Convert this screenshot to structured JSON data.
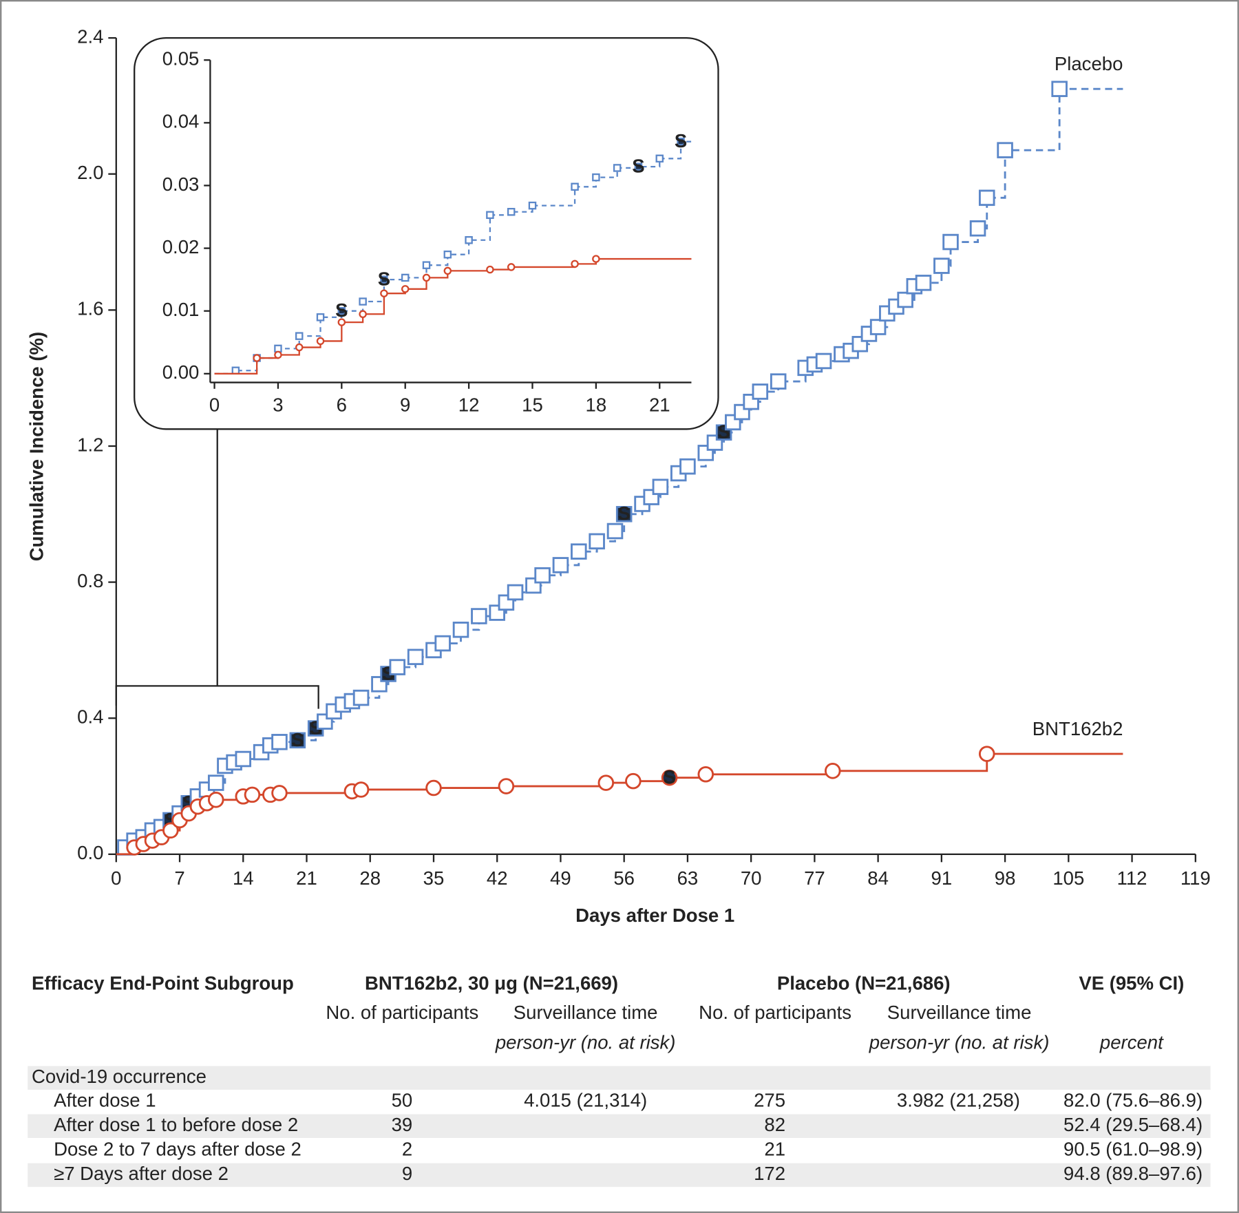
{
  "chart_data": [
    {
      "type": "step",
      "xlabel": "Days after Dose 1",
      "ylabel": "Cumulative Incidence (%)",
      "xlim": [
        0,
        119
      ],
      "ylim": [
        0,
        2.4
      ],
      "xticks": [
        0,
        7,
        14,
        21,
        28,
        35,
        42,
        49,
        56,
        63,
        70,
        77,
        84,
        91,
        98,
        105,
        112,
        119
      ],
      "yticks": [
        {
          "value": 0,
          "label": "0.0"
        },
        0.4,
        0.8,
        1.2,
        1.6,
        {
          "value": 2,
          "label": "2.0"
        },
        2.4
      ],
      "line_end_x": 111,
      "series": [
        {
          "name": "Placebo",
          "color": "#5b87c9",
          "marker": "square",
          "dashed": true,
          "x": [
            0,
            1,
            2,
            3,
            4,
            5,
            6,
            7,
            8,
            9,
            10,
            11,
            12,
            13,
            14,
            16,
            17,
            18,
            20,
            22,
            23,
            24,
            25,
            26,
            27,
            29,
            30,
            31,
            33,
            35,
            36,
            38,
            40,
            42,
            43,
            44,
            46,
            47,
            49,
            51,
            53,
            55,
            56,
            58,
            59,
            60,
            62,
            63,
            65,
            66,
            67,
            68,
            69,
            70,
            71,
            73,
            76,
            77,
            78,
            80,
            81,
            82,
            83,
            84,
            85,
            86,
            87,
            88,
            89,
            91,
            92,
            95,
            96,
            98,
            104
          ],
          "values": [
            0,
            0.02,
            0.04,
            0.05,
            0.07,
            0.08,
            0.1,
            0.12,
            0.15,
            0.17,
            0.19,
            0.21,
            0.26,
            0.27,
            0.28,
            0.3,
            0.32,
            0.33,
            0.335,
            0.37,
            0.39,
            0.42,
            0.44,
            0.45,
            0.46,
            0.5,
            0.53,
            0.55,
            0.58,
            0.6,
            0.62,
            0.66,
            0.7,
            0.71,
            0.74,
            0.77,
            0.79,
            0.82,
            0.85,
            0.89,
            0.92,
            0.95,
            1.0,
            1.03,
            1.05,
            1.08,
            1.12,
            1.14,
            1.18,
            1.21,
            1.24,
            1.27,
            1.3,
            1.33,
            1.36,
            1.39,
            1.43,
            1.44,
            1.45,
            1.47,
            1.48,
            1.5,
            1.53,
            1.55,
            1.59,
            1.61,
            1.63,
            1.67,
            1.68,
            1.73,
            1.8,
            1.84,
            1.93,
            2.07,
            2.25
          ],
          "marker_labels": [
            null,
            null,
            null,
            null,
            null,
            null,
            "S",
            null,
            "S",
            null,
            null,
            null,
            null,
            null,
            null,
            null,
            null,
            null,
            "S",
            "S",
            null,
            null,
            null,
            null,
            null,
            null,
            "S",
            null,
            null,
            null,
            null,
            null,
            null,
            null,
            null,
            null,
            null,
            null,
            null,
            null,
            null,
            null,
            "S",
            null,
            null,
            null,
            null,
            null,
            null,
            null,
            "S",
            null,
            null,
            null,
            null,
            null,
            null,
            null,
            null,
            null,
            null,
            null,
            null,
            null,
            null,
            null,
            null,
            null,
            null,
            null,
            null,
            null,
            null,
            null,
            null
          ]
        },
        {
          "name": "BNT162b2",
          "color": "#d4472b",
          "marker": "circle",
          "dashed": false,
          "x": [
            0,
            2,
            3,
            4,
            5,
            6,
            7,
            8,
            9,
            10,
            11,
            14,
            15,
            17,
            18,
            26,
            27,
            35,
            43,
            54,
            57,
            61,
            65,
            79,
            96
          ],
          "values": [
            0,
            0.02,
            0.03,
            0.04,
            0.05,
            0.07,
            0.1,
            0.12,
            0.14,
            0.15,
            0.16,
            0.17,
            0.175,
            0.175,
            0.18,
            0.185,
            0.19,
            0.195,
            0.2,
            0.21,
            0.215,
            0.225,
            0.235,
            0.245,
            0.295
          ],
          "marker_labels": [
            null,
            null,
            null,
            null,
            null,
            null,
            null,
            null,
            null,
            null,
            null,
            null,
            null,
            null,
            null,
            null,
            null,
            null,
            null,
            null,
            null,
            "S",
            null,
            null,
            null
          ]
        }
      ]
    },
    {
      "type": "step",
      "xlim": [
        -0.2,
        22.5
      ],
      "ylim": [
        -0.0014,
        0.05
      ],
      "xticks": [
        0,
        3,
        6,
        9,
        12,
        15,
        18,
        21
      ],
      "yticks": [
        {
          "value": 0,
          "label": "0.00"
        },
        {
          "value": 0.01,
          "label": "0.01"
        },
        {
          "value": 0.02,
          "label": "0.02"
        },
        {
          "value": 0.03,
          "label": "0.03"
        },
        {
          "value": 0.04,
          "label": "0.04"
        },
        {
          "value": 0.05,
          "label": "0.05"
        }
      ],
      "line_end_x": 22.5,
      "series": [
        {
          "color": "#5b87c9",
          "marker": "square",
          "dashed": true,
          "x": [
            0,
            1,
            2,
            3,
            4,
            5,
            6,
            7,
            8,
            9,
            10,
            11,
            12,
            13,
            14,
            15,
            17,
            18,
            19,
            20,
            21,
            22
          ],
          "values": [
            0,
            0.0005,
            0.0025,
            0.004,
            0.006,
            0.009,
            0.01,
            0.0115,
            0.015,
            0.0153,
            0.0173,
            0.019,
            0.0213,
            0.0253,
            0.0258,
            0.0268,
            0.0298,
            0.0313,
            0.0328,
            0.033,
            0.0343,
            0.037
          ],
          "marker_labels": [
            null,
            null,
            null,
            null,
            null,
            null,
            "S",
            null,
            "S",
            null,
            null,
            null,
            null,
            null,
            null,
            null,
            null,
            null,
            null,
            "S",
            null,
            "S"
          ]
        },
        {
          "color": "#d4472b",
          "marker": "circle",
          "dashed": false,
          "x": [
            0,
            2,
            3,
            4,
            5,
            6,
            7,
            8,
            9,
            10,
            11,
            13,
            14,
            17,
            18
          ],
          "values": [
            0,
            0.0025,
            0.003,
            0.0042,
            0.0052,
            0.0082,
            0.0095,
            0.0128,
            0.0135,
            0.0153,
            0.0164,
            0.0166,
            0.017,
            0.0175,
            0.0183
          ]
        }
      ]
    }
  ],
  "table": {
    "headers": [
      "Efficacy End-Point Subgroup",
      "BNT162b2, 30 μg (N=21,669)",
      "Placebo (N=21,686)",
      "VE (95% CI)"
    ],
    "subheaders": [
      "No. of participants",
      "Surveillance time",
      "No. of participants",
      "Surveillance time"
    ],
    "units": [
      "person-yr (no. at risk)",
      "person-yr (no. at risk)",
      "percent"
    ],
    "section": "Covid-19 occurrence",
    "rows": [
      [
        "After dose 1",
        50,
        "4.015 (21,314)",
        275,
        "3.982 (21,258)",
        "82.0 (75.6–86.9)"
      ],
      [
        "After dose 1 to before dose 2",
        39,
        null,
        82,
        null,
        "52.4 (29.5–68.4)"
      ],
      [
        "Dose 2 to 7 days after dose 2",
        2,
        null,
        21,
        null,
        "90.5 (61.0–98.9)"
      ],
      [
        "≥7 Days after dose 2",
        9,
        null,
        172,
        null,
        "94.8 (89.8–97.6)"
      ]
    ]
  }
}
